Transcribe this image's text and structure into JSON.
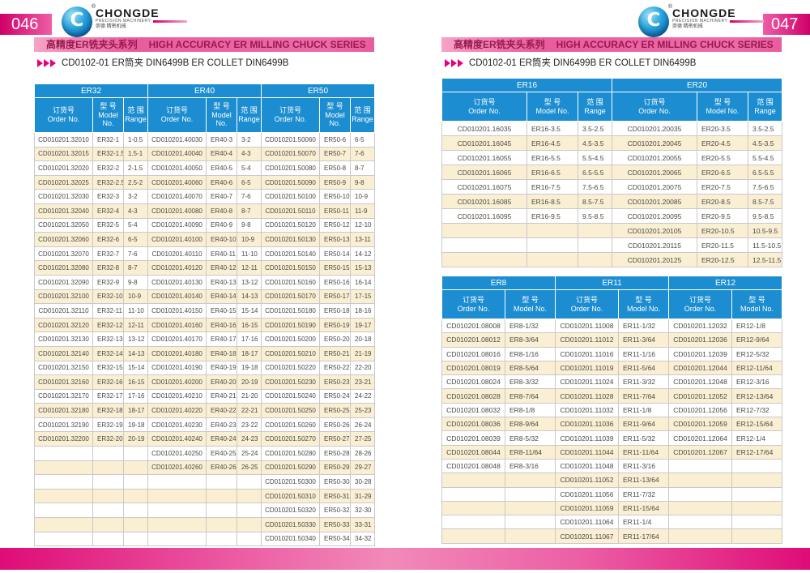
{
  "brand": {
    "name": "CHONGDE",
    "tagline": "PRECISION MACHINERY",
    "cn": "崇德 精密机械",
    "monogram": "C",
    "registered": "®"
  },
  "colors": {
    "accent_magenta": "#e5007e",
    "band_pink": "#ec6ba8",
    "table_header_blue": "#1b8dd0",
    "row_cream": "#faefd2"
  },
  "page046": {
    "page_no": "046",
    "series_cn": "高精度ER铣夹头系列",
    "series_en": "HIGH ACCURACY ER MILLING CHUCK SERIES",
    "product_title": "CD0102-01 ER筒夹  DIN6499B ER COLLET DIN6499B",
    "table": {
      "groups": [
        {
          "name": "ER32",
          "headers": [
            [
              "订货号",
              "Order No."
            ],
            [
              "型 号",
              "Model",
              "No."
            ],
            [
              "范 围",
              "Range"
            ]
          ],
          "rows": [
            [
              "CD010201.32010",
              "ER32-1",
              "1-0.5"
            ],
            [
              "CD010201.32015",
              "ER32-1.5",
              "1.5-1"
            ],
            [
              "CD010201.32020",
              "ER32-2",
              "2-1.5"
            ],
            [
              "CD010201.32025",
              "ER32-2.5",
              "2.5-2"
            ],
            [
              "CD010201.32030",
              "ER32-3",
              "3-2"
            ],
            [
              "CD010201.32040",
              "ER32-4",
              "4-3"
            ],
            [
              "CD010201.32050",
              "ER32-5",
              "5-4"
            ],
            [
              "CD010201.32060",
              "ER32-6",
              "6-5"
            ],
            [
              "CD010201.32070",
              "ER32-7",
              "7-6"
            ],
            [
              "CD010201.32080",
              "ER32-8",
              "8-7"
            ],
            [
              "CD010201.32090",
              "ER32-9",
              "9-8"
            ],
            [
              "CD010201.32100",
              "ER32-10",
              "10-9"
            ],
            [
              "CD010201.32110",
              "ER32-11",
              "11-10"
            ],
            [
              "CD010201.32120",
              "ER32-12",
              "12-11"
            ],
            [
              "CD010201.32130",
              "ER32-13",
              "13-12"
            ],
            [
              "CD010201.32140",
              "ER32-14",
              "14-13"
            ],
            [
              "CD010201.32150",
              "ER32-15",
              "15-14"
            ],
            [
              "CD010201.32160",
              "ER32-16",
              "16-15"
            ],
            [
              "CD010201.32170",
              "ER32-17",
              "17-16"
            ],
            [
              "CD010201.32180",
              "ER32-18",
              "18-17"
            ],
            [
              "CD010201.32190",
              "ER32-19",
              "19-18"
            ],
            [
              "CD010201.32200",
              "ER32-20",
              "20-19"
            ]
          ]
        },
        {
          "name": "ER40",
          "headers": [
            [
              "订货号",
              "Order No."
            ],
            [
              "型 号",
              "Model",
              "No."
            ],
            [
              "范 围",
              "Range"
            ]
          ],
          "rows": [
            [
              "CD010201.40030",
              "ER40-3",
              "3-2"
            ],
            [
              "CD010201.40040",
              "ER40-4",
              "4-3"
            ],
            [
              "CD010201.40050",
              "ER40-5",
              "5-4"
            ],
            [
              "CD010201.40060",
              "ER40-6",
              "6-5"
            ],
            [
              "CD010201.40070",
              "ER40-7",
              "7-6"
            ],
            [
              "CD010201.40080",
              "ER40-8",
              "8-7"
            ],
            [
              "CD010201.40090",
              "ER40-9",
              "9-8"
            ],
            [
              "CD010201.40100",
              "ER40-10",
              "10-9"
            ],
            [
              "CD010201.40110",
              "ER40-11",
              "11-10"
            ],
            [
              "CD010201.40120",
              "ER40-12",
              "12-11"
            ],
            [
              "CD010201.40130",
              "ER40-13",
              "13-12"
            ],
            [
              "CD010201.40140",
              "ER40-14",
              "14-13"
            ],
            [
              "CD010201.40150",
              "ER40-15",
              "15-14"
            ],
            [
              "CD010201.40160",
              "ER40-16",
              "16-15"
            ],
            [
              "CD010201.40170",
              "ER40-17",
              "17-16"
            ],
            [
              "CD010201.40180",
              "ER40-18",
              "18-17"
            ],
            [
              "CD010201.40190",
              "ER40-19",
              "19-18"
            ],
            [
              "CD010201.40200",
              "ER40-20",
              "20-19"
            ],
            [
              "CD010201.40210",
              "ER40-21",
              "21-20"
            ],
            [
              "CD010201.40220",
              "ER40-22",
              "22-21"
            ],
            [
              "CD010201.40230",
              "ER40-23",
              "23-22"
            ],
            [
              "CD010201.40240",
              "ER40-24",
              "24-23"
            ],
            [
              "CD010201.40250",
              "ER40-25",
              "25-24"
            ],
            [
              "CD010201.40260",
              "ER40-26",
              "26-25"
            ]
          ]
        },
        {
          "name": "ER50",
          "headers": [
            [
              "订货号",
              "Order No."
            ],
            [
              "型 号",
              "Model No."
            ],
            [
              "范 围",
              "Range"
            ]
          ],
          "rows": [
            [
              "CD010201.50060",
              "ER50-6",
              "6-5"
            ],
            [
              "CD010201.50070",
              "ER50-7",
              "7-6"
            ],
            [
              "CD010201.50080",
              "ER50-8",
              "8-7"
            ],
            [
              "CD010201.50090",
              "ER50-9",
              "9-8"
            ],
            [
              "CD010201.50100",
              "ER50-10",
              "10-9"
            ],
            [
              "CD010201.50110",
              "ER50-11",
              "11-9"
            ],
            [
              "CD010201.50120",
              "ER50-12",
              "12-10"
            ],
            [
              "CD010201.50130",
              "ER50-13",
              "13-11"
            ],
            [
              "CD010201.50140",
              "ER50-14",
              "14-12"
            ],
            [
              "CD010201.50150",
              "ER50-15",
              "15-13"
            ],
            [
              "CD010201.50160",
              "ER50-16",
              "16-14"
            ],
            [
              "CD010201.50170",
              "ER50-17",
              "17-15"
            ],
            [
              "CD010201.50180",
              "ER50-18",
              "18-16"
            ],
            [
              "CD010201.50190",
              "ER50-19",
              "19-17"
            ],
            [
              "CD010201.50200",
              "ER50-20",
              "20-18"
            ],
            [
              "CD010201.50210",
              "ER50-21",
              "21-19"
            ],
            [
              "CD010201.50220",
              "ER50-22",
              "22-20"
            ],
            [
              "CD010201.50230",
              "ER50-23",
              "23-21"
            ],
            [
              "CD010201.50240",
              "ER50-24",
              "24-22"
            ],
            [
              "CD010201.50250",
              "ER50-25",
              "25-23"
            ],
            [
              "CD010201.50260",
              "ER50-26",
              "26-24"
            ],
            [
              "CD010201.50270",
              "ER50-27",
              "27-25"
            ],
            [
              "CD010201.50280",
              "ER50-28",
              "28-26"
            ],
            [
              "CD010201.50290",
              "ER50-29",
              "29-27"
            ],
            [
              "CD010201.50300",
              "ER50-30",
              "30-28"
            ],
            [
              "CD010201.50310",
              "ER50-31",
              "31-29"
            ],
            [
              "CD010201.50320",
              "ER50-32",
              "32-30"
            ],
            [
              "CD010201.50330",
              "ER50-33",
              "33-31"
            ],
            [
              "CD010201.50340",
              "ER50-34",
              "34-32"
            ]
          ]
        }
      ]
    }
  },
  "page047": {
    "page_no": "047",
    "series_cn": "高精度ER铣夹头系列",
    "series_en": "HIGH ACCURACY ER MILLING CHUCK SERIES",
    "product_title": "CD0102-01 ER筒夹  DIN6499B ER COLLET DIN6499B",
    "table_top": {
      "groups": [
        {
          "name": "ER16",
          "headers": [
            [
              "订货号",
              "Order No."
            ],
            [
              "型 号",
              "Model  No."
            ],
            [
              "范 围Range"
            ]
          ],
          "rows": [
            [
              "CD010201.16035",
              "ER16-3.5",
              "3.5-2.5"
            ],
            [
              "CD010201.16045",
              "ER16-4.5",
              "4.5-3.5"
            ],
            [
              "CD010201.16055",
              "ER16-5.5",
              "5.5-4.5"
            ],
            [
              "CD010201.16065",
              "ER16-6.5",
              "6.5-5.5"
            ],
            [
              "CD010201.16075",
              "ER16-7.5",
              "7.5-6.5"
            ],
            [
              "CD010201.16085",
              "ER16-8.5",
              "8.5-7.5"
            ],
            [
              "CD010201.16095",
              "ER16-9.5",
              "9.5-8.5"
            ]
          ]
        },
        {
          "name": "ER20",
          "headers": [
            [
              "订货号",
              "Order No."
            ],
            [
              "型 号",
              "Model No."
            ],
            [
              "范 围",
              "Range"
            ]
          ],
          "rows": [
            [
              "CD010201.20035",
              "ER20-3.5",
              "3.5-2.5"
            ],
            [
              "CD010201.20045",
              "ER20-4.5",
              "4.5-3.5"
            ],
            [
              "CD010201.20055",
              "ER20-5.5",
              "5.5-4.5"
            ],
            [
              "CD010201.20065",
              "ER20-6.5",
              "6.5-5.5"
            ],
            [
              "CD010201.20075",
              "ER20-7.5",
              "7.5-6.5"
            ],
            [
              "CD010201.20085",
              "ER20-8.5",
              "8.5-7.5"
            ],
            [
              "CD010201.20095",
              "ER20-9.5",
              "9.5-8.5"
            ],
            [
              "CD010201.20105",
              "ER20-10.5",
              "10.5-9.5"
            ],
            [
              "CD010201.20115",
              "ER20-11.5",
              "11.5-10.5"
            ],
            [
              "CD010201.20125",
              "ER20-12.5",
              "12.5-11.5"
            ]
          ]
        }
      ]
    },
    "table_bottom": {
      "groups": [
        {
          "name": "ER8",
          "headers": [
            [
              "订货号",
              "Order No."
            ],
            [
              "型 号",
              "Model  No."
            ]
          ],
          "rows": [
            [
              "CD010201.08008",
              "ER8-1/32"
            ],
            [
              "CD010201.08012",
              "ER8-3/64"
            ],
            [
              "CD010201.08016",
              "ER8-1/16"
            ],
            [
              "CD010201.08019",
              "ER8-5/64"
            ],
            [
              "CD010201.08024",
              "ER8-3/32"
            ],
            [
              "CD010201.08028",
              "ER8-7/64"
            ],
            [
              "CD010201.08032",
              "ER8-1/8"
            ],
            [
              "CD010201.08036",
              "ER8-9/64"
            ],
            [
              "CD010201.08039",
              "ER8-5/32"
            ],
            [
              "CD010201.08044",
              "ER8-11/64"
            ],
            [
              "CD010201.08048",
              "ER8-3/16"
            ]
          ]
        },
        {
          "name": "ER11",
          "headers": [
            [
              "订货号",
              "Order No."
            ],
            [
              "型 号",
              "Model No."
            ]
          ],
          "rows": [
            [
              "CD010201.11008",
              "ER11-1/32"
            ],
            [
              "CD010201.11012",
              "ER11-3/64"
            ],
            [
              "CD010201.11016",
              "ER11-1/16"
            ],
            [
              "CD010201.11019",
              "ER11-5/64"
            ],
            [
              "CD010201.11024",
              "ER11-3/32"
            ],
            [
              "CD010201.11028",
              "ER11-7/64"
            ],
            [
              "CD010201.11032",
              "ER11-1/8"
            ],
            [
              "CD010201.11036",
              "ER11-9/64"
            ],
            [
              "CD010201.11039",
              "ER11-5/32"
            ],
            [
              "CD010201.11044",
              "ER11-11/64"
            ],
            [
              "CD010201.11048",
              "ER11-3/16"
            ],
            [
              "CD010201.11052",
              "ER11-13/64"
            ],
            [
              "CD010201.11056",
              "ER11-7/32"
            ],
            [
              "CD010201.11059",
              "ER11-15/64"
            ],
            [
              "CD010201.11064",
              "ER11-1/4"
            ],
            [
              "CD010201.11067",
              "ER11-17/64"
            ]
          ]
        },
        {
          "name": "ER12",
          "headers": [
            [
              "订货号",
              "Order No."
            ],
            [
              "型 号",
              "Model  No."
            ]
          ],
          "rows": [
            [
              "CD010201.12032",
              "ER12-1/8"
            ],
            [
              "CD010201.12036",
              "ER12-9/64"
            ],
            [
              "CD010201.12039",
              "ER12-5/32"
            ],
            [
              "CD010201.12044",
              "ER12-11/64"
            ],
            [
              "CD010201.12048",
              "ER12-3/16"
            ],
            [
              "CD010201.12052",
              "ER12-13/64"
            ],
            [
              "CD010201.12056",
              "ER12-7/32"
            ],
            [
              "CD010201.12059",
              "ER12-15/64"
            ],
            [
              "CD010201.12064",
              "ER12-1/4"
            ],
            [
              "CD010201.12067",
              "ER12-17/64"
            ]
          ]
        }
      ]
    }
  }
}
